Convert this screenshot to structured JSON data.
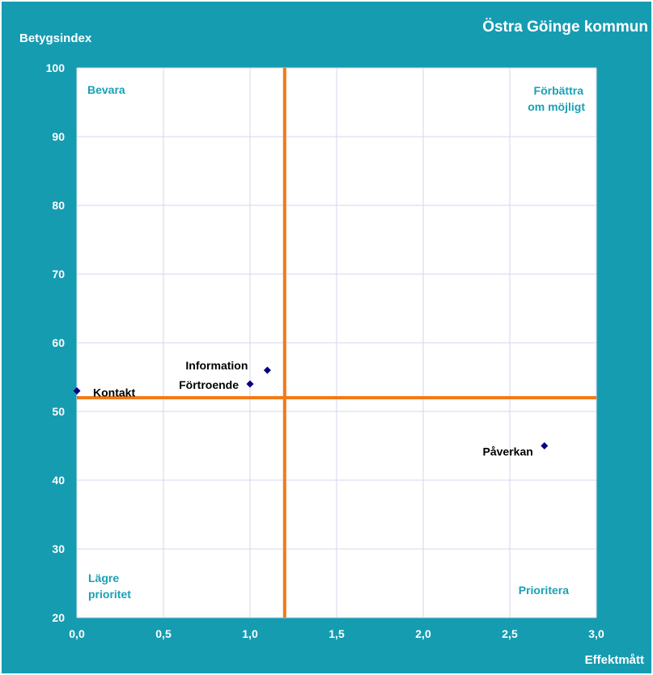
{
  "chart_data": {
    "type": "scatter",
    "title": "Östra Göinge kommun",
    "xlabel": "Effektmått",
    "ylabel": "Betygsindex",
    "xlim": [
      0,
      3
    ],
    "ylim": [
      20,
      100
    ],
    "x_ticks": [
      "0,0",
      "0,5",
      "1,0",
      "1,5",
      "2,0",
      "2,5",
      "3,0"
    ],
    "y_ticks": [
      "20",
      "30",
      "40",
      "50",
      "60",
      "70",
      "80",
      "90",
      "100"
    ],
    "grid": true,
    "reference_lines": {
      "x": 1.2,
      "y": 52,
      "color": "#f07b1a"
    },
    "quadrant_labels": {
      "top_left": "Bevara",
      "top_right_1": "Förbättra",
      "top_right_2": "om möjligt",
      "bottom_left_1": "Lägre",
      "bottom_left_2": "prioritet",
      "bottom_right": "Prioritera"
    },
    "points": [
      {
        "label": "Kontakt",
        "x": 0.0,
        "y": 53
      },
      {
        "label": "Information",
        "x": 1.1,
        "y": 56
      },
      {
        "label": "Förtroende",
        "x": 1.0,
        "y": 54
      },
      {
        "label": "Påverkan",
        "x": 2.7,
        "y": 45
      }
    ],
    "colors": {
      "frame": "#169cb1",
      "plot": "#ffffff",
      "grid": "#d3d7ee",
      "marker": "#000080",
      "quadrant_text": "#1aa0b5",
      "reference": "#f07b1a"
    }
  }
}
